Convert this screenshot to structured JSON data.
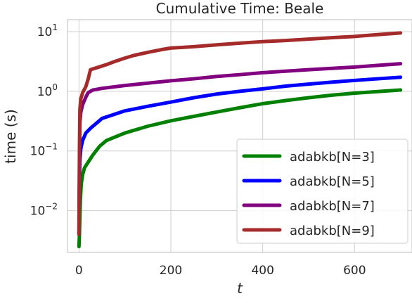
{
  "chart_data": {
    "type": "line",
    "title": "Cumulative Time: Beale",
    "xlabel": "t",
    "ylabel": "time (s)",
    "xlim": [
      -25,
      725
    ],
    "ylim_log10": [
      -2.7,
      1.2
    ],
    "yscale": "log",
    "grid": true,
    "legend_position": "bottom-right",
    "x_ticks": [
      0,
      200,
      400,
      600
    ],
    "x_tick_labels": [
      "0",
      "200",
      "400",
      "600"
    ],
    "y_ticks_log10": [
      -2,
      -1,
      0,
      1
    ],
    "y_tick_labels": [
      {
        "base": "10",
        "exp": "−2"
      },
      {
        "base": "10",
        "exp": "−1"
      },
      {
        "base": "10",
        "exp": "0"
      },
      {
        "base": "10",
        "exp": "1"
      }
    ],
    "series": [
      {
        "name": "adabkb[N=3]",
        "color": "#008000",
        "points": [
          [
            0,
            0.0025
          ],
          [
            1,
            0.004
          ],
          [
            2,
            0.008
          ],
          [
            3,
            0.015
          ],
          [
            5,
            0.028
          ],
          [
            8,
            0.04
          ],
          [
            12,
            0.052
          ],
          [
            20,
            0.065
          ],
          [
            30,
            0.085
          ],
          [
            45,
            0.12
          ],
          [
            60,
            0.15
          ],
          [
            100,
            0.2
          ],
          [
            150,
            0.26
          ],
          [
            200,
            0.32
          ],
          [
            250,
            0.38
          ],
          [
            300,
            0.45
          ],
          [
            350,
            0.53
          ],
          [
            400,
            0.62
          ],
          [
            450,
            0.7
          ],
          [
            500,
            0.78
          ],
          [
            550,
            0.86
          ],
          [
            600,
            0.93
          ],
          [
            650,
            0.99
          ],
          [
            700,
            1.05
          ]
        ]
      },
      {
        "name": "adabkb[N=5]",
        "color": "#0000ff",
        "points": [
          [
            0,
            0.007
          ],
          [
            1,
            0.03
          ],
          [
            2,
            0.07
          ],
          [
            4,
            0.11
          ],
          [
            8,
            0.15
          ],
          [
            15,
            0.2
          ],
          [
            25,
            0.24
          ],
          [
            40,
            0.3
          ],
          [
            50,
            0.35
          ],
          [
            100,
            0.47
          ],
          [
            150,
            0.56
          ],
          [
            200,
            0.66
          ],
          [
            250,
            0.78
          ],
          [
            300,
            0.9
          ],
          [
            350,
            1.0
          ],
          [
            400,
            1.1
          ],
          [
            450,
            1.22
          ],
          [
            500,
            1.32
          ],
          [
            550,
            1.42
          ],
          [
            600,
            1.52
          ],
          [
            650,
            1.62
          ],
          [
            700,
            1.72
          ]
        ]
      },
      {
        "name": "adabkb[N=7]",
        "color": "#800080",
        "points": [
          [
            0,
            0.004
          ],
          [
            1,
            0.05
          ],
          [
            2,
            0.3
          ],
          [
            4,
            0.45
          ],
          [
            8,
            0.6
          ],
          [
            15,
            0.8
          ],
          [
            20,
            0.95
          ],
          [
            30,
            1.05
          ],
          [
            50,
            1.12
          ],
          [
            100,
            1.25
          ],
          [
            150,
            1.37
          ],
          [
            200,
            1.5
          ],
          [
            250,
            1.62
          ],
          [
            300,
            1.77
          ],
          [
            350,
            1.9
          ],
          [
            400,
            2.05
          ],
          [
            450,
            2.17
          ],
          [
            500,
            2.3
          ],
          [
            550,
            2.42
          ],
          [
            600,
            2.55
          ],
          [
            650,
            2.72
          ],
          [
            700,
            2.9
          ]
        ]
      },
      {
        "name": "adabkb[N=9]",
        "color": "#a52a2a",
        "points": [
          [
            0,
            0.004
          ],
          [
            1,
            0.1
          ],
          [
            2,
            0.5
          ],
          [
            4,
            0.75
          ],
          [
            8,
            0.95
          ],
          [
            15,
            1.2
          ],
          [
            20,
            1.6
          ],
          [
            25,
            2.3
          ],
          [
            40,
            2.5
          ],
          [
            60,
            2.8
          ],
          [
            80,
            3.2
          ],
          [
            100,
            3.6
          ],
          [
            120,
            4.0
          ],
          [
            150,
            4.5
          ],
          [
            180,
            5.0
          ],
          [
            200,
            5.3
          ],
          [
            250,
            5.6
          ],
          [
            300,
            6.0
          ],
          [
            350,
            6.4
          ],
          [
            400,
            6.8
          ],
          [
            450,
            7.1
          ],
          [
            500,
            7.5
          ],
          [
            550,
            7.9
          ],
          [
            600,
            8.3
          ],
          [
            650,
            8.9
          ],
          [
            700,
            9.5
          ]
        ]
      }
    ]
  }
}
